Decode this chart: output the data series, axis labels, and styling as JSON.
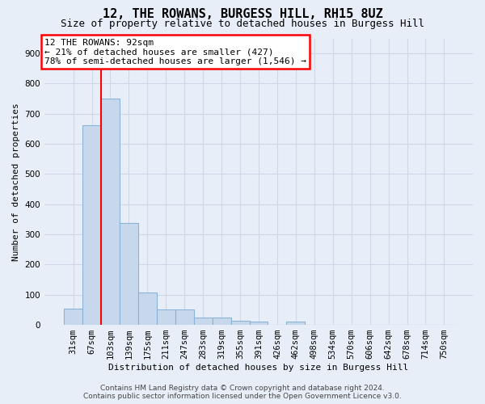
{
  "title": "12, THE ROWANS, BURGESS HILL, RH15 8UZ",
  "subtitle": "Size of property relative to detached houses in Burgess Hill",
  "xlabel": "Distribution of detached houses by size in Burgess Hill",
  "ylabel": "Number of detached properties",
  "footer_line1": "Contains HM Land Registry data © Crown copyright and database right 2024.",
  "footer_line2": "Contains public sector information licensed under the Open Government Licence v3.0.",
  "bar_labels": [
    "31sqm",
    "67sqm",
    "103sqm",
    "139sqm",
    "175sqm",
    "211sqm",
    "247sqm",
    "283sqm",
    "319sqm",
    "355sqm",
    "391sqm",
    "426sqm",
    "462sqm",
    "498sqm",
    "534sqm",
    "570sqm",
    "606sqm",
    "642sqm",
    "678sqm",
    "714sqm",
    "750sqm"
  ],
  "bar_values": [
    55,
    662,
    750,
    338,
    107,
    52,
    52,
    25,
    25,
    14,
    10,
    0,
    10,
    0,
    0,
    0,
    0,
    0,
    0,
    0,
    0
  ],
  "bar_color": "#c8d8ec",
  "bar_edge_color": "#89b4d8",
  "annotation_title": "12 THE ROWANS: 92sqm",
  "annotation_line1": "← 21% of detached houses are smaller (427)",
  "annotation_line2": "78% of semi-detached houses are larger (1,546) →",
  "red_line_x": 1.5,
  "ylim": [
    0,
    950
  ],
  "yticks": [
    0,
    100,
    200,
    300,
    400,
    500,
    600,
    700,
    800,
    900
  ],
  "bg_color": "#e8eef8",
  "plot_bg_color": "#e8eef8",
  "grid_color": "#d0d8e8",
  "title_fontsize": 11,
  "subtitle_fontsize": 9,
  "axis_label_fontsize": 8,
  "tick_fontsize": 7.5,
  "footer_fontsize": 6.5
}
